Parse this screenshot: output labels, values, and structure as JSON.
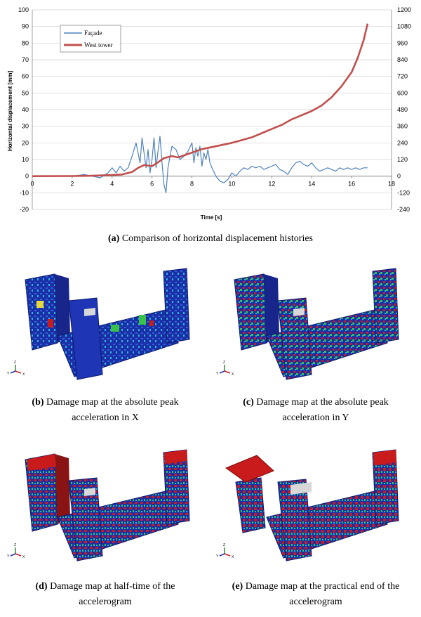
{
  "chart_data": {
    "type": "line",
    "xlabel": "Time [s]",
    "ylabel": "Horizontal displacement [mm]",
    "xlim": [
      0,
      18
    ],
    "ylim": [
      -20,
      100
    ],
    "ylim_right": [
      -240,
      1200
    ],
    "x_ticks": [
      0,
      2,
      4,
      6,
      8,
      10,
      12,
      14,
      16,
      18
    ],
    "y_ticks": [
      -20,
      -10,
      0,
      10,
      20,
      30,
      40,
      50,
      60,
      70,
      80,
      90,
      100
    ],
    "y_ticks_right": [
      -240,
      -120,
      0,
      120,
      240,
      360,
      480,
      600,
      720,
      840,
      960,
      1080,
      1200
    ],
    "grid": "horizontal",
    "legend_position": "top-left",
    "series": [
      {
        "name": "Façade",
        "axis": "left",
        "color": "#4f81bd",
        "x": [
          0,
          2,
          2.6,
          3,
          3.4,
          3.8,
          4,
          4.2,
          4.4,
          4.6,
          4.8,
          5.0,
          5.2,
          5.4,
          5.5,
          5.6,
          5.7,
          5.8,
          5.9,
          6.0,
          6.1,
          6.2,
          6.3,
          6.4,
          6.5,
          6.6,
          6.7,
          6.8,
          6.9,
          7.0,
          7.2,
          7.4,
          7.6,
          7.8,
          8.0,
          8.1,
          8.2,
          8.3,
          8.4,
          8.5,
          8.6,
          8.7,
          8.8,
          8.9,
          9.0,
          9.2,
          9.4,
          9.6,
          9.8,
          10.0,
          10.2,
          10.4,
          10.6,
          10.8,
          11.0,
          11.2,
          11.4,
          11.6,
          11.8,
          12.0,
          12.2,
          12.4,
          12.6,
          12.8,
          13.0,
          13.2,
          13.4,
          13.6,
          13.8,
          14.0,
          14.2,
          14.4,
          14.6,
          14.8,
          15.0,
          15.2,
          15.4,
          15.6,
          15.8,
          16.0,
          16.2,
          16.4,
          16.6,
          16.8
        ],
        "y": [
          0,
          0,
          1,
          0,
          -1,
          2,
          5,
          2,
          6,
          3,
          5,
          12,
          20,
          8,
          23,
          14,
          5,
          16,
          2,
          10,
          23,
          5,
          15,
          24,
          8,
          -5,
          -10,
          5,
          12,
          18,
          16,
          10,
          12,
          15,
          20,
          8,
          17,
          12,
          18,
          6,
          14,
          10,
          16,
          8,
          5,
          0,
          -3,
          -4,
          -2,
          2,
          0,
          3,
          5,
          4,
          6,
          5,
          6,
          4,
          5,
          6,
          7,
          4,
          3,
          1,
          5,
          8,
          9,
          7,
          6,
          8,
          5,
          3,
          4,
          5,
          4,
          3,
          5,
          4,
          5,
          4,
          5,
          4,
          5,
          5
        ]
      },
      {
        "name": "West tower",
        "axis": "right",
        "color": "#c0504d",
        "x": [
          0,
          2,
          3,
          4,
          4.5,
          5.0,
          5.3,
          5.6,
          6.0,
          6.3,
          6.6,
          7.0,
          7.3,
          7.6,
          8.0,
          8.5,
          9.0,
          9.5,
          10.0,
          10.5,
          11.0,
          11.5,
          12.0,
          12.5,
          13.0,
          13.5,
          14.0,
          14.5,
          15.0,
          15.5,
          16.0,
          16.3,
          16.6,
          16.8
        ],
        "y": [
          0,
          1,
          3,
          8,
          12,
          30,
          60,
          80,
          72,
          100,
          130,
          145,
          135,
          150,
          170,
          195,
          210,
          225,
          240,
          260,
          280,
          310,
          340,
          370,
          410,
          440,
          470,
          510,
          570,
          650,
          750,
          850,
          980,
          1100
        ]
      }
    ]
  },
  "captions": {
    "a_label": "(a)",
    "a_text": "Comparison of horizontal displacement histories",
    "b_label": "(b)",
    "b_line1": "Damage map at the absolute peak",
    "b_line2": "acceleration in X",
    "c_label": "(c)",
    "c_line1": "Damage map at the absolute peak",
    "c_line2": "acceleration in Y",
    "d_label": "(d)",
    "d_line1": "Damage map at half-time of the",
    "d_line2": "accelerogram",
    "e_label": "(e)",
    "e_line1": "Damage map at the practical end of the",
    "e_line2": "accelerogram"
  },
  "panels": {
    "axis_triad": {
      "y": "Y",
      "z": "Z",
      "x": "X"
    },
    "colors": {
      "base": "#1a2fa8",
      "low": "#2f63d6",
      "mid": "#2fb5d8",
      "high": "#39c24a",
      "damage": "#c91b1b",
      "warning": "#e8d83a"
    }
  }
}
